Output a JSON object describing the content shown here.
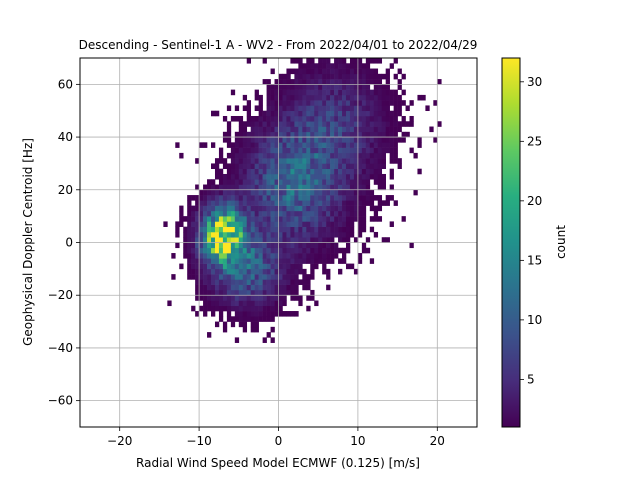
{
  "chart_data": {
    "type": "heatmap",
    "title": "Descending - Sentinel-1 A - WV2 - From 2022/04/01 to 2022/04/29",
    "xlabel": "Radial Wind Speed Model ECMWF (0.125) [m/s]",
    "ylabel": "Geophysical Doppler Centroid [Hz]",
    "xlim": [
      -25,
      25
    ],
    "ylim": [
      -70,
      70
    ],
    "xticks": [
      -20,
      -10,
      0,
      10,
      20
    ],
    "xtick_labels": [
      "−20",
      "−10",
      "0",
      "10",
      "20"
    ],
    "yticks": [
      -60,
      -40,
      -20,
      0,
      20,
      40,
      60
    ],
    "ytick_labels": [
      "−60",
      "−40",
      "−20",
      "0",
      "20",
      "40",
      "60"
    ],
    "grid": true,
    "colormap": "viridis",
    "colorbar": {
      "label": "count",
      "range": [
        1,
        32
      ],
      "ticks": [
        5,
        10,
        15,
        20,
        25,
        30
      ],
      "tick_labels": [
        "5",
        "10",
        "15",
        "20",
        "25",
        "30"
      ]
    },
    "bin_width": [
      0.5,
      2
    ],
    "density_clusters": [
      {
        "center": [
          -7,
          3
        ],
        "spread": [
          1.8,
          7
        ],
        "peak_count": 31
      },
      {
        "center": [
          -4,
          -10
        ],
        "spread": [
          3,
          9
        ],
        "peak_count": 10
      },
      {
        "center": [
          2,
          22
        ],
        "spread": [
          4,
          14
        ],
        "peak_count": 11
      },
      {
        "center": [
          7,
          45
        ],
        "spread": [
          4,
          13
        ],
        "peak_count": 6
      }
    ]
  }
}
